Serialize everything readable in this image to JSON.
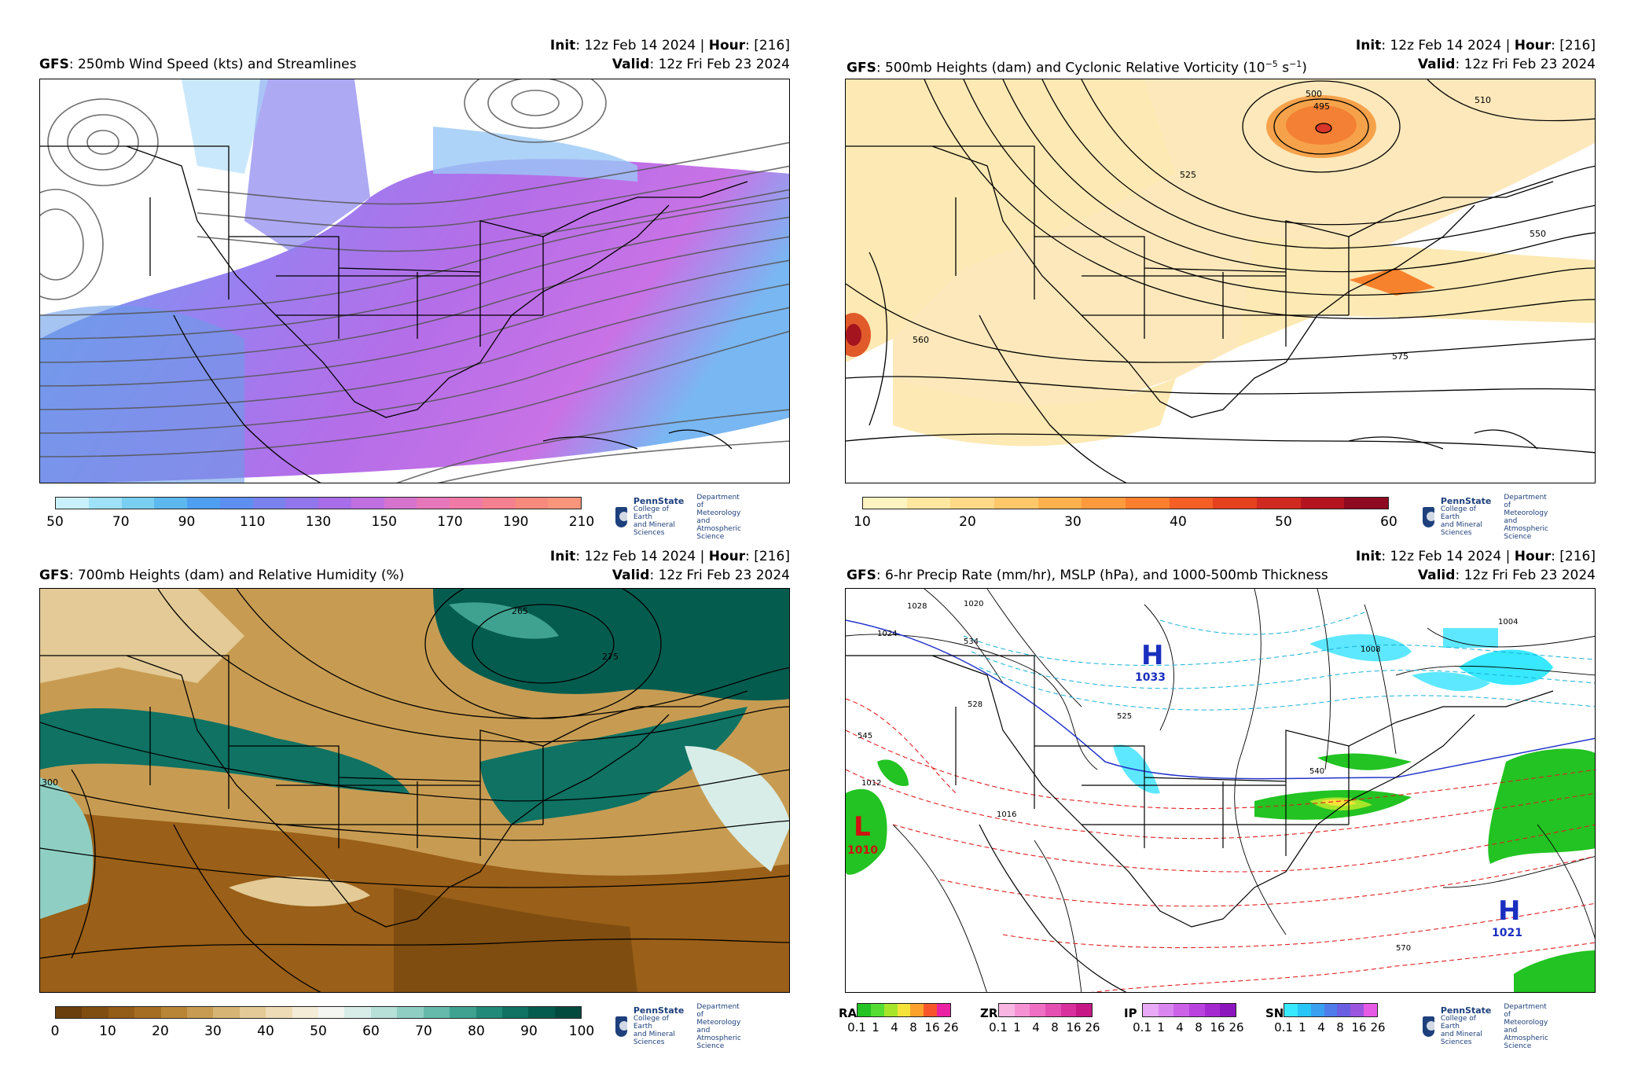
{
  "panels": [
    {
      "init_label": "Init",
      "init_value": ": 12z Feb 14 2024 | ",
      "hour_label": "Hour",
      "hour_value": ": [216]",
      "model": "GFS",
      "title": ": 250mb Wind Speed (kts) and Streamlines",
      "valid_label": "Valid",
      "valid_value": ": 12z Fri Feb 23 2024",
      "colorbar_ticks": [
        "50",
        "70",
        "90",
        "110",
        "130",
        "150",
        "170",
        "190",
        "210"
      ],
      "colorbar_colors": [
        "#c9f0fb",
        "#9fe1f7",
        "#79cff2",
        "#5cb8ee",
        "#4f9ff0",
        "#5d8ff0",
        "#7a82ee",
        "#9277ec",
        "#a86de8",
        "#bf6fe0",
        "#d673cf",
        "#e777bb",
        "#f07aa5",
        "#f5808f",
        "#f88a7d",
        "#f9957a"
      ]
    },
    {
      "init_label": "Init",
      "init_value": ": 12z Feb 14 2024 | ",
      "hour_label": "Hour",
      "hour_value": ": [216]",
      "model": "GFS",
      "title": ": 500mb Heights (dam) and Cyclonic Relative Vorticity (10",
      "title_sup1": "−5",
      "title_mid": " s",
      "title_sup2": "−1",
      "title_end": ")",
      "valid_label": "Valid",
      "valid_value": ": 12z Fri Feb 23 2024",
      "colorbar_ticks": [
        "10",
        "20",
        "30",
        "40",
        "50",
        "60"
      ],
      "colorbar_colors": [
        "#fff3bf",
        "#ffe7a0",
        "#fed987",
        "#fec76a",
        "#feb14d",
        "#fd9a3d",
        "#fc7e2f",
        "#f55f26",
        "#e5411f",
        "#d02a20",
        "#b3141f",
        "#8e0a20"
      ],
      "contour_labels": [
        "500",
        "495",
        "510",
        "525",
        "550",
        "560",
        "575"
      ]
    },
    {
      "init_label": "Init",
      "init_value": ": 12z Feb 14 2024 | ",
      "hour_label": "Hour",
      "hour_value": ": [216]",
      "model": "GFS",
      "title": ": 700mb Heights (dam) and Relative Humidity (%)",
      "valid_label": "Valid",
      "valid_value": ": 12z Fri Feb 23 2024",
      "colorbar_ticks": [
        "0",
        "10",
        "20",
        "30",
        "40",
        "50",
        "60",
        "70",
        "80",
        "90",
        "100"
      ],
      "colorbar_colors": [
        "#6b3f0c",
        "#7f4d10",
        "#935c17",
        "#a56d22",
        "#b88536",
        "#c79c52",
        "#d6b474",
        "#e3ca96",
        "#eedcb6",
        "#f5ecd8",
        "#f4f6f2",
        "#d8ede8",
        "#b6e0d8",
        "#8fcfc3",
        "#66baab",
        "#3fa291",
        "#228a78",
        "#0f7263",
        "#045c4f",
        "#004a3e"
      ],
      "contour_labels": [
        "265",
        "275",
        "300"
      ]
    },
    {
      "init_label": "Init",
      "init_value": ": 12z Feb 14 2024 | ",
      "hour_label": "Hour",
      "hour_value": ": [216]",
      "model": "GFS",
      "title": ": 6-hr Precip Rate (mm/hr), MSLP (hPa), and 1000-500mb Thickness",
      "valid_label": "Valid",
      "valid_value": ": 12z Fri Feb 23 2024",
      "precip_types": [
        {
          "label": "RA",
          "colors": [
            "#22c322",
            "#55dd33",
            "#a6e52a",
            "#f5e33a",
            "#fca12c",
            "#f8552c",
            "#ea21a3"
          ],
          "ticks": [
            "0.1",
            "1",
            "4",
            "8",
            "16",
            "26"
          ]
        },
        {
          "label": "ZR",
          "colors": [
            "#f9b6e3",
            "#f592d4",
            "#ef6fc4",
            "#e64fb2",
            "#d8309d",
            "#c61985"
          ],
          "ticks": [
            "0.1",
            "1",
            "4",
            "8",
            "16",
            "26"
          ]
        },
        {
          "label": "IP",
          "colors": [
            "#e8a9f6",
            "#da86f0",
            "#cb62e8",
            "#b942df",
            "#a42ad0",
            "#8c16bd"
          ],
          "ticks": [
            "0.1",
            "1",
            "4",
            "8",
            "16",
            "26"
          ]
        },
        {
          "label": "SN",
          "colors": [
            "#38e8ff",
            "#28c6f6",
            "#3aa0f0",
            "#4f7cea",
            "#6a5ee3",
            "#9b54e0",
            "#e75ae6"
          ],
          "ticks": [
            "0.1",
            "1",
            "4",
            "8",
            "16",
            "26"
          ]
        }
      ],
      "highs": [
        {
          "letter": "H",
          "value": "1033"
        },
        {
          "letter": "H",
          "value": "1021"
        }
      ],
      "lows": [
        {
          "letter": "L",
          "value": "1010"
        }
      ],
      "contour_labels": [
        "1028",
        "1024",
        "1020",
        "1016",
        "1012",
        "1008",
        "1004",
        "540",
        "545",
        "570",
        "534",
        "528",
        "525"
      ]
    }
  ],
  "logo": {
    "name": "PennState",
    "college_line1": "College of Earth",
    "college_line2": "and Mineral Sciences",
    "dept_line1": "Department of",
    "dept_line2": "Meteorology and",
    "dept_line3": "Atmospheric Science"
  }
}
